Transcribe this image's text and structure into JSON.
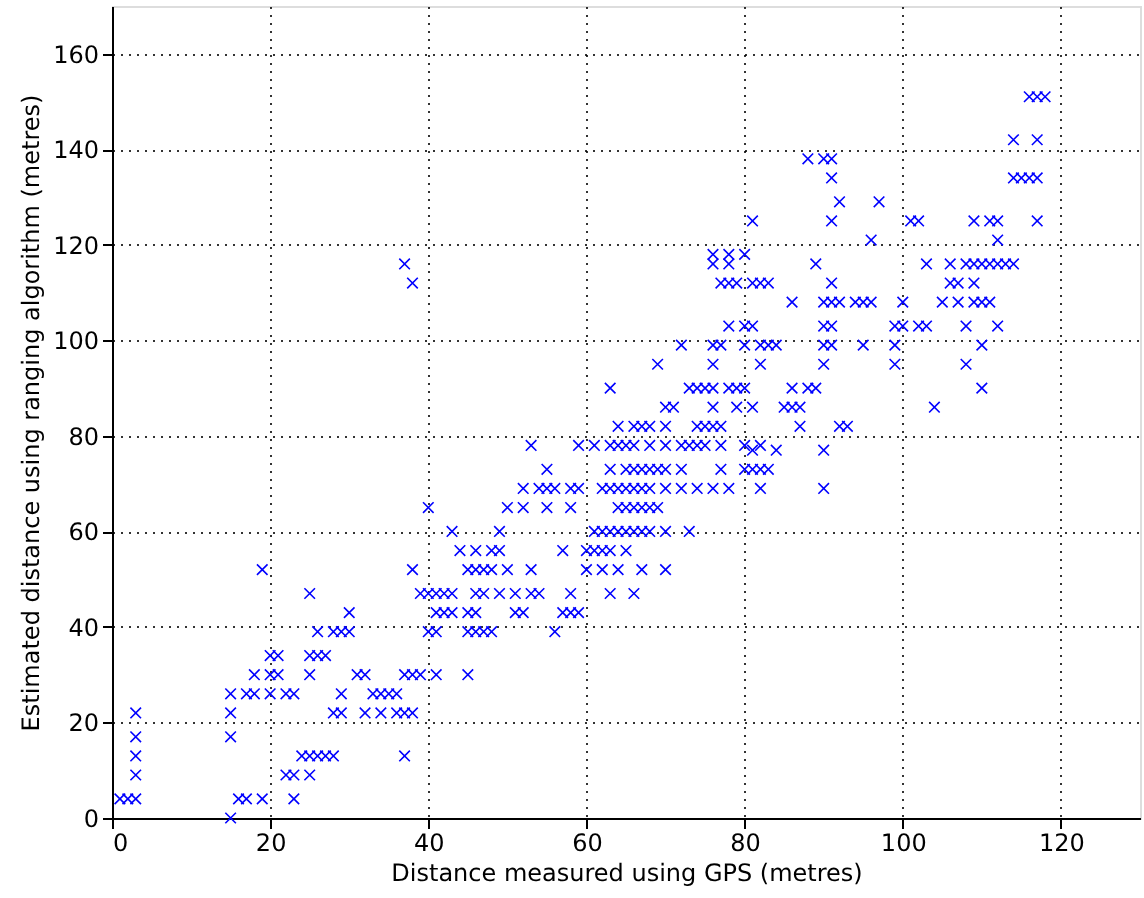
{
  "chart_data": {
    "type": "scatter",
    "xlabel": "Distance measured using GPS (metres)",
    "ylabel": "Estimated distance using ranging algorithm (metres)",
    "xlim": [
      0,
      130
    ],
    "ylim": [
      0,
      170
    ],
    "xticks": [
      0,
      20,
      40,
      60,
      80,
      100,
      120
    ],
    "yticks": [
      0,
      20,
      40,
      60,
      80,
      100,
      120,
      140,
      160
    ],
    "grid": true,
    "marker": "cross",
    "series": [
      {
        "color": "#0000ff",
        "x": [
          1,
          2,
          3,
          3,
          3,
          3,
          3,
          15,
          15,
          15,
          15,
          16,
          17,
          19,
          17,
          18,
          18,
          20,
          21,
          20,
          22,
          23,
          20,
          21,
          19,
          22,
          23,
          23,
          24,
          25,
          26,
          27,
          28,
          25,
          25,
          25,
          26,
          27,
          25,
          26,
          28,
          29,
          30,
          30,
          29,
          28,
          29,
          31,
          32,
          32,
          33,
          34,
          35,
          36,
          34,
          36,
          37,
          38,
          37,
          37,
          38,
          39,
          41,
          38,
          39,
          40,
          41,
          42,
          43,
          40,
          41,
          40,
          41,
          42,
          43,
          43,
          45,
          45,
          46,
          47,
          48,
          45,
          46,
          45,
          46,
          47,
          48,
          46,
          48,
          46,
          47,
          49,
          49,
          49,
          50,
          50,
          51,
          52,
          51,
          53,
          54,
          53,
          52,
          52,
          53,
          54,
          55,
          56,
          55,
          56,
          57,
          58,
          58,
          58,
          58,
          59,
          59,
          60,
          60,
          37,
          38,
          81,
          76,
          78,
          80,
          76,
          78,
          77,
          78,
          79,
          82,
          83,
          78,
          80,
          81,
          72,
          76,
          77,
          80,
          83,
          69,
          76,
          63,
          73,
          74,
          75,
          76,
          78,
          79,
          80,
          70,
          71,
          76,
          79,
          64,
          66,
          67,
          68,
          70,
          74,
          75,
          76,
          77,
          61,
          63,
          64,
          65,
          66,
          68,
          70,
          72,
          73,
          74,
          75,
          77,
          80,
          82,
          63,
          65,
          66,
          67,
          68,
          69,
          70,
          72,
          77,
          80,
          82,
          62,
          63,
          64,
          65,
          66,
          67,
          68,
          70,
          72,
          74,
          76,
          78,
          55,
          64,
          65,
          66,
          67,
          68,
          69,
          61,
          62,
          63,
          64,
          65,
          66,
          67,
          68,
          70,
          73,
          57,
          61,
          62,
          63,
          65,
          44,
          62,
          64,
          67,
          70,
          63,
          66,
          59,
          116,
          117,
          118,
          114,
          117,
          88,
          90,
          91,
          114,
          115,
          116,
          117,
          91,
          92,
          97,
          91,
          101,
          102,
          109,
          111,
          112,
          117,
          96,
          112,
          89,
          103,
          106,
          108,
          109,
          110,
          111,
          112,
          113,
          114,
          81,
          91,
          106,
          107,
          109,
          86,
          90,
          91,
          92,
          94,
          95,
          96,
          100,
          105,
          107,
          109,
          110,
          111,
          90,
          91,
          99,
          100,
          102,
          103,
          108,
          112,
          82,
          84,
          90,
          91,
          95,
          99,
          110,
          82,
          90,
          99,
          108,
          86,
          88,
          89,
          110,
          81,
          85,
          86,
          87,
          104,
          87,
          92,
          93,
          81,
          84,
          90,
          81,
          83,
          82,
          90
        ],
        "values": [
          4,
          4,
          4,
          9,
          13,
          17,
          22,
          0,
          17,
          22,
          26,
          4,
          4,
          4,
          26,
          30,
          26,
          30,
          30,
          26,
          26,
          26,
          34,
          34,
          52,
          9,
          9,
          4,
          13,
          13,
          13,
          13,
          13,
          9,
          47,
          34,
          34,
          34,
          30,
          39,
          39,
          39,
          39,
          43,
          26,
          22,
          22,
          30,
          30,
          22,
          26,
          26,
          26,
          26,
          22,
          22,
          22,
          22,
          13,
          30,
          30,
          30,
          30,
          52,
          47,
          47,
          47,
          47,
          47,
          39,
          39,
          65,
          43,
          43,
          43,
          60,
          30,
          39,
          39,
          39,
          39,
          43,
          43,
          52,
          52,
          52,
          52,
          56,
          56,
          47,
          47,
          47,
          56,
          60,
          65,
          52,
          43,
          43,
          47,
          47,
          47,
          52,
          65,
          69,
          78,
          69,
          69,
          69,
          73,
          39,
          43,
          43,
          47,
          65,
          69,
          69,
          78,
          52,
          56,
          116,
          112,
          125,
          118,
          118,
          118,
          116,
          116,
          112,
          112,
          112,
          112,
          112,
          103,
          103,
          103,
          99,
          99,
          99,
          99,
          99,
          95,
          95,
          90,
          90,
          90,
          90,
          90,
          90,
          90,
          90,
          86,
          86,
          86,
          86,
          82,
          82,
          82,
          82,
          82,
          82,
          82,
          82,
          82,
          78,
          78,
          78,
          78,
          78,
          78,
          78,
          78,
          78,
          78,
          78,
          78,
          78,
          78,
          73,
          73,
          73,
          73,
          73,
          73,
          73,
          73,
          73,
          73,
          73,
          69,
          69,
          69,
          69,
          69,
          69,
          69,
          69,
          69,
          69,
          69,
          69,
          65,
          65,
          65,
          65,
          65,
          65,
          65,
          60,
          60,
          60,
          60,
          60,
          60,
          60,
          60,
          60,
          60,
          56,
          56,
          56,
          56,
          56,
          56,
          52,
          52,
          52,
          52,
          47,
          47,
          43,
          151,
          151,
          151,
          142,
          142,
          138,
          138,
          138,
          134,
          134,
          134,
          134,
          134,
          129,
          129,
          125,
          125,
          125,
          125,
          125,
          125,
          125,
          121,
          121,
          116,
          116,
          116,
          116,
          116,
          116,
          116,
          116,
          116,
          116,
          112,
          112,
          112,
          112,
          112,
          108,
          108,
          108,
          108,
          108,
          108,
          108,
          108,
          108,
          108,
          108,
          108,
          108,
          103,
          103,
          103,
          103,
          103,
          103,
          103,
          103,
          99,
          99,
          99,
          99,
          99,
          99,
          99,
          95,
          95,
          95,
          95,
          90,
          90,
          90,
          90,
          86,
          86,
          86,
          86,
          86,
          82,
          82,
          82,
          77,
          77,
          77,
          73,
          73,
          69,
          69
        ]
      }
    ]
  }
}
